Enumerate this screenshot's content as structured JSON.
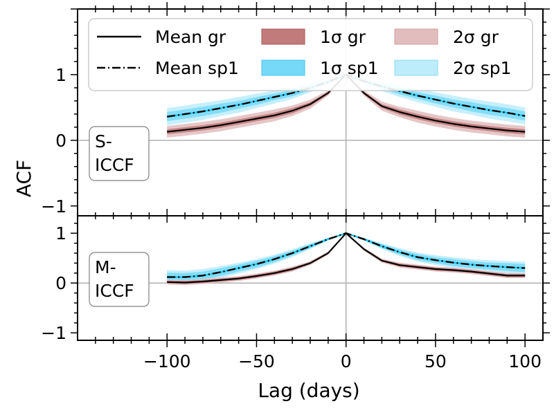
{
  "chart_data": {
    "type": "line",
    "xlabel": "Lag (days)",
    "ylabel": "ACF",
    "xlim": [
      -150,
      110
    ],
    "ylim_top": [
      -1.15,
      2.0
    ],
    "ylim_bottom": [
      -1.15,
      1.35
    ],
    "xticks": [
      -100,
      -50,
      0,
      50,
      100
    ],
    "xtick_labels": [
      "−100",
      "−50",
      "0",
      "50",
      "100"
    ],
    "yticks": [
      -1,
      0,
      1
    ],
    "ytick_labels": [
      "−1",
      "0",
      "1"
    ],
    "colors": {
      "gr_line": "#000000",
      "gr_1sigma": "#c17b7b",
      "gr_2sigma": "#e2bdbd",
      "sp1_line": "#000000",
      "sp1_dash": "#1fc7f0",
      "sp1_1sigma": "#77d9f8",
      "sp1_2sigma": "#bdecfb"
    },
    "legend": {
      "placement": "top",
      "entries": [
        {
          "label": "Mean gr",
          "kind": "solid-line"
        },
        {
          "label": "Mean sp1",
          "kind": "dashdot-line"
        },
        {
          "label": "1σ gr",
          "kind": "patch-gr-1"
        },
        {
          "label": "1σ sp1",
          "kind": "patch-sp1-1"
        },
        {
          "label": "2σ gr",
          "kind": "patch-gr-2"
        },
        {
          "label": "2σ sp1",
          "kind": "patch-sp1-2"
        }
      ]
    },
    "panels": [
      {
        "label_line1": "S-",
        "label_line2": "ICCF",
        "x": [
          -100,
          -90,
          -80,
          -70,
          -60,
          -50,
          -40,
          -30,
          -20,
          -10,
          0,
          10,
          20,
          30,
          40,
          50,
          60,
          70,
          80,
          90,
          100
        ],
        "series": [
          {
            "name": "Mean gr",
            "values": [
              0.13,
              0.16,
              0.19,
              0.23,
              0.28,
              0.33,
              0.38,
              0.45,
              0.55,
              0.72,
              1.0,
              0.72,
              0.52,
              0.43,
              0.36,
              0.3,
              0.25,
              0.21,
              0.18,
              0.15,
              0.13
            ],
            "sigma1": [
              0.04,
              0.04,
              0.04,
              0.04,
              0.04,
              0.04,
              0.04,
              0.04,
              0.03,
              0.02,
              0.0,
              0.02,
              0.03,
              0.04,
              0.04,
              0.04,
              0.04,
              0.04,
              0.04,
              0.04,
              0.04
            ],
            "sigma2": [
              0.09,
              0.09,
              0.09,
              0.09,
              0.09,
              0.09,
              0.09,
              0.08,
              0.07,
              0.04,
              0.0,
              0.04,
              0.07,
              0.08,
              0.09,
              0.09,
              0.09,
              0.09,
              0.09,
              0.09,
              0.09
            ]
          },
          {
            "name": "Mean sp1",
            "values": [
              0.36,
              0.4,
              0.44,
              0.49,
              0.54,
              0.6,
              0.66,
              0.72,
              0.8,
              0.89,
              1.0,
              0.9,
              0.82,
              0.75,
              0.68,
              0.62,
              0.56,
              0.51,
              0.46,
              0.42,
              0.37
            ],
            "sigma1": [
              0.07,
              0.07,
              0.07,
              0.07,
              0.06,
              0.06,
              0.05,
              0.05,
              0.04,
              0.02,
              0.0,
              0.02,
              0.04,
              0.05,
              0.05,
              0.06,
              0.06,
              0.07,
              0.07,
              0.07,
              0.07
            ],
            "sigma2": [
              0.13,
              0.13,
              0.13,
              0.12,
              0.12,
              0.11,
              0.1,
              0.09,
              0.07,
              0.04,
              0.0,
              0.04,
              0.07,
              0.09,
              0.1,
              0.11,
              0.12,
              0.12,
              0.13,
              0.13,
              0.13
            ]
          }
        ]
      },
      {
        "label_line1": "M-",
        "label_line2": "ICCF",
        "x": [
          -100,
          -90,
          -80,
          -70,
          -60,
          -50,
          -40,
          -30,
          -20,
          -10,
          0,
          10,
          20,
          30,
          40,
          50,
          60,
          70,
          80,
          90,
          100
        ],
        "series": [
          {
            "name": "Mean gr",
            "values": [
              0.02,
              0.01,
              0.03,
              0.06,
              0.09,
              0.14,
              0.2,
              0.28,
              0.4,
              0.6,
              1.0,
              0.68,
              0.45,
              0.36,
              0.32,
              0.28,
              0.26,
              0.23,
              0.19,
              0.15,
              0.15
            ],
            "sigma1": [
              0.03,
              0.03,
              0.03,
              0.03,
              0.03,
              0.03,
              0.03,
              0.03,
              0.02,
              0.02,
              0.0,
              0.02,
              0.02,
              0.03,
              0.03,
              0.03,
              0.03,
              0.03,
              0.03,
              0.03,
              0.03
            ],
            "sigma2": [
              0.05,
              0.05,
              0.05,
              0.05,
              0.05,
              0.05,
              0.05,
              0.05,
              0.04,
              0.03,
              0.0,
              0.03,
              0.04,
              0.05,
              0.05,
              0.05,
              0.05,
              0.05,
              0.05,
              0.05,
              0.05
            ]
          },
          {
            "name": "Mean sp1",
            "values": [
              0.12,
              0.12,
              0.15,
              0.22,
              0.3,
              0.38,
              0.48,
              0.6,
              0.74,
              0.88,
              1.0,
              0.88,
              0.74,
              0.62,
              0.52,
              0.46,
              0.41,
              0.37,
              0.34,
              0.32,
              0.3
            ],
            "sigma1": [
              0.09,
              0.08,
              0.08,
              0.08,
              0.07,
              0.07,
              0.06,
              0.05,
              0.04,
              0.02,
              0.0,
              0.02,
              0.04,
              0.05,
              0.06,
              0.06,
              0.07,
              0.07,
              0.07,
              0.08,
              0.08
            ],
            "sigma2": [
              0.14,
              0.13,
              0.13,
              0.12,
              0.11,
              0.1,
              0.09,
              0.08,
              0.06,
              0.03,
              0.0,
              0.03,
              0.06,
              0.08,
              0.09,
              0.1,
              0.11,
              0.11,
              0.12,
              0.12,
              0.13
            ]
          }
        ]
      }
    ]
  }
}
